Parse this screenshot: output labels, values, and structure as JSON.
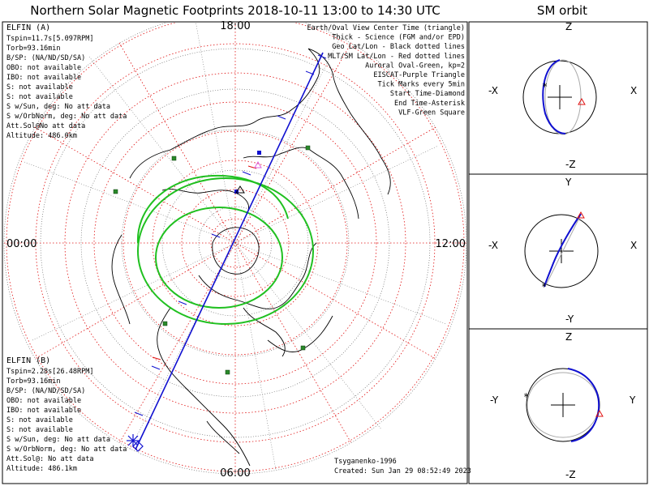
{
  "header": {
    "title": "Northern Solar Magnetic Footprints 2018-10-11 13:00 to 14:30 UTC",
    "orbit_title": "SM orbit"
  },
  "clock_labels": {
    "top": "18:00",
    "left": "00:00",
    "right": "12:00",
    "bottom": "06:00"
  },
  "elfin_a": {
    "name": "ELFIN (A)",
    "color": "#1010d0",
    "lines": [
      "Tspin=11.7s[5.097RPM]",
      "Torb=93.16min",
      "B/SP: (NA/ND/SD/SA)",
      "OBO: not available",
      "IBO: not available",
      "S: not available",
      "S: not available",
      "S w/Sun, deg: No att data",
      "S w/OrbNorm, deg: No att data",
      "Att.Sol@No att data",
      "Altitude: 486.0km"
    ]
  },
  "elfin_b": {
    "name": "ELFIN (B)",
    "color": "#e03030",
    "lines": [
      "Tspin=2.28s[26.48RPM]",
      "Torb=93.16min",
      "B/SP: (NA/ND/SD/SA)",
      "OBO: not available",
      "IBO: not available",
      "S: not available",
      "S: not available",
      "S w/Sun, deg: No att data",
      "S w/OrbNorm, deg: No att data",
      "Att.Sol@: No att data",
      "Altitude: 486.1km"
    ]
  },
  "legend": [
    {
      "text": "Earth/Oval View Center Time (triangle)",
      "color": "#000000"
    },
    {
      "text": "Thick - Science (FGM and/or EPD)",
      "color": "#000000"
    },
    {
      "text": "Geo Lat/Lon - Black dotted lines",
      "color": "#000000"
    },
    {
      "text": "MLT/SM Lat/Lon - Red dotted lines",
      "color": "#e01010"
    },
    {
      "text": "Auroral Oval-Green, kp=2",
      "color": "#20c020"
    },
    {
      "text": "EISCAT-Purple Triangle",
      "color": "#e060e0"
    },
    {
      "text": "Tick Marks every 5min",
      "color": "#000000"
    },
    {
      "text": "Start Time-Diamond",
      "color": "#000000"
    },
    {
      "text": "End Time-Asterisk",
      "color": "#000000"
    },
    {
      "text": "VLF-Green Square",
      "color": "#20c020"
    }
  ],
  "footer": {
    "credit": "Tsyganenko-1996",
    "created": "Created: Sun Jan 29 08:52:49 2023"
  },
  "orbit_panels": [
    {
      "top": "Z",
      "bottom": "-Z",
      "left": "-X",
      "right": "X"
    },
    {
      "top": "Y",
      "bottom": "-Y",
      "left": "-X",
      "right": "X"
    },
    {
      "top": "Z",
      "bottom": "-Z",
      "left": "-Y",
      "right": "Y"
    }
  ],
  "colors": {
    "trajectory": "#1010d0",
    "mlt_grid": "#e01010",
    "auroral_oval": "#20c020",
    "coast": "#000000"
  }
}
